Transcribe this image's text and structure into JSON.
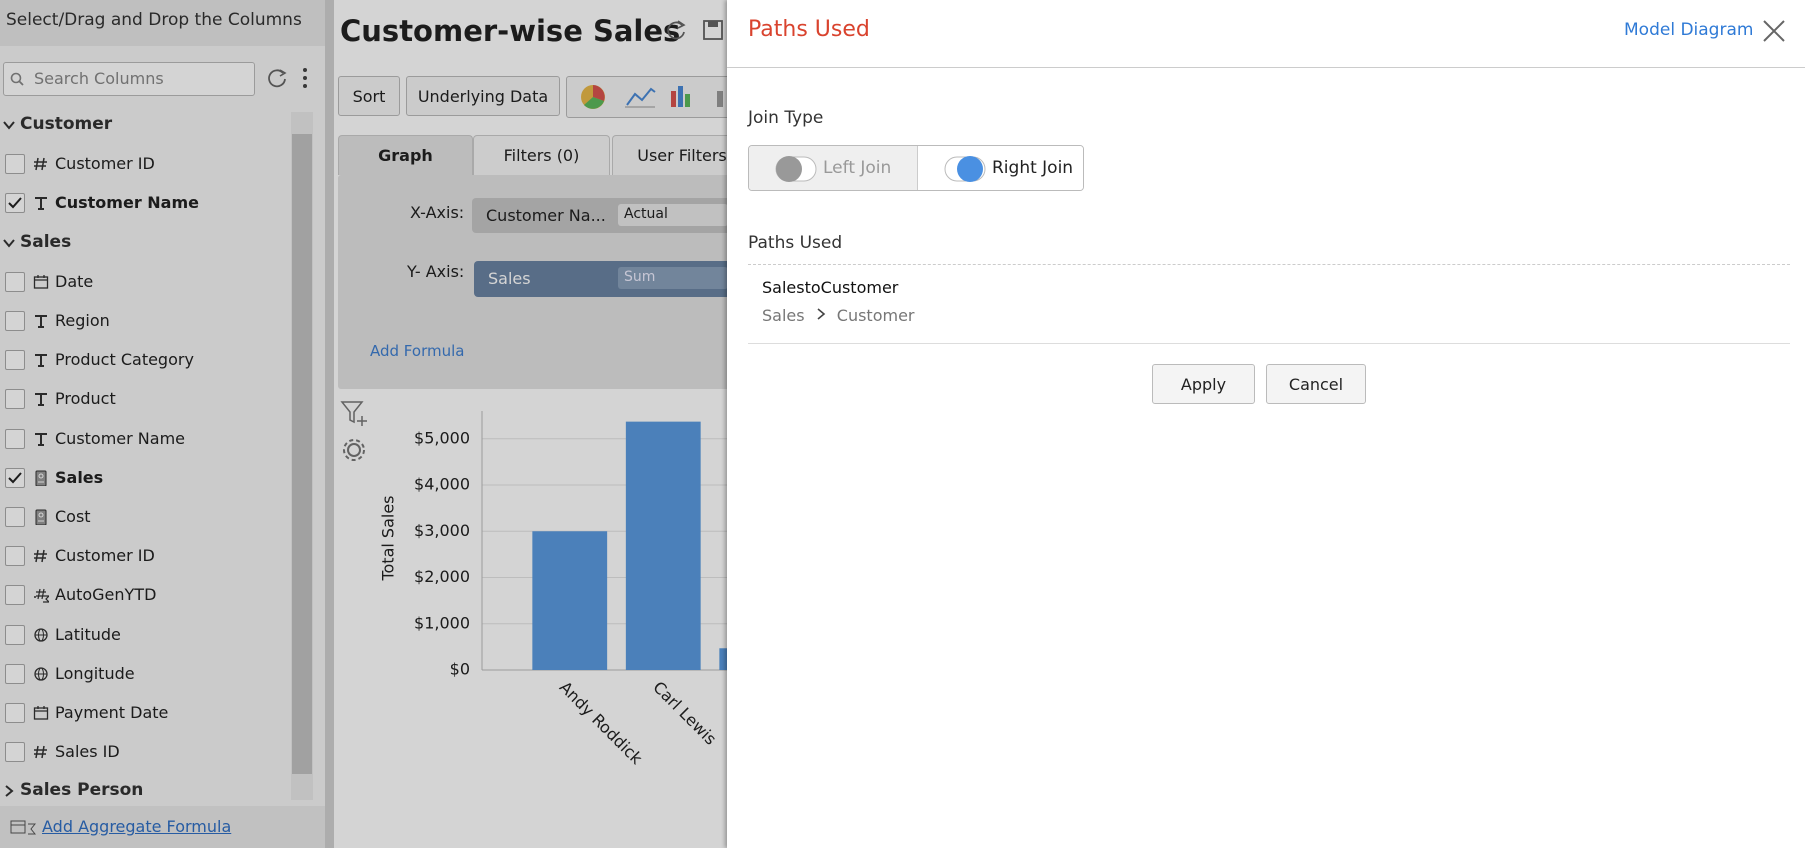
{
  "sidebar": {
    "title": "Select/Drag and Drop the Columns",
    "search_placeholder": "Search Columns",
    "groups": [
      {
        "name": "Customer",
        "expanded": true,
        "columns": [
          {
            "name": "Customer ID",
            "kind": "number",
            "checked": false
          },
          {
            "name": "Customer Name",
            "kind": "text",
            "checked": true
          }
        ]
      },
      {
        "name": "Sales",
        "expanded": true,
        "columns": [
          {
            "name": "Date",
            "kind": "date",
            "checked": false
          },
          {
            "name": "Region",
            "kind": "text",
            "checked": false
          },
          {
            "name": "Product Category",
            "kind": "text",
            "checked": false
          },
          {
            "name": "Product",
            "kind": "text",
            "checked": false
          },
          {
            "name": "Customer Name",
            "kind": "text",
            "checked": false
          },
          {
            "name": "Sales",
            "kind": "measure",
            "checked": true
          },
          {
            "name": "Cost",
            "kind": "measure",
            "checked": false
          },
          {
            "name": "Customer ID",
            "kind": "number",
            "checked": false
          },
          {
            "name": "AutoGenYTD",
            "kind": "formula",
            "checked": false
          },
          {
            "name": "Latitude",
            "kind": "geo",
            "checked": false
          },
          {
            "name": "Longitude",
            "kind": "geo",
            "checked": false
          },
          {
            "name": "Payment Date",
            "kind": "date",
            "checked": false
          },
          {
            "name": "Sales ID",
            "kind": "number",
            "checked": false
          }
        ]
      },
      {
        "name": "Sales Person",
        "expanded": false,
        "columns": []
      }
    ],
    "footer_link": "Add Aggregate Formula"
  },
  "report": {
    "title": "Customer-wise Sales",
    "toolbar": [
      "Sort",
      "Underlying Data"
    ],
    "tabs": [
      "Graph",
      "Filters (0)",
      "User Filters"
    ],
    "active_tab": 0,
    "x_axis_label": "X-Axis:",
    "x_axis_field": "Customer Na...",
    "x_axis_option": "Actual",
    "y_axis_label": "Y- Axis:",
    "y_axis_field": "Sales",
    "y_axis_option": "Sum",
    "add_formula": "Add Formula"
  },
  "chart_data": {
    "type": "bar",
    "y_axis_label": "Total Sales",
    "categories": [
      "Andy Roddick",
      "Carl Lewis",
      null
    ],
    "values": [
      3000,
      5370,
      470
    ],
    "color": "#5b9be0",
    "ylim": [
      0,
      5600
    ],
    "yticks": [
      {
        "value": 0,
        "label": "$0"
      },
      {
        "value": 1000,
        "label": "$1,000"
      },
      {
        "value": 2000,
        "label": "$2,000"
      },
      {
        "value": 3000,
        "label": "$3,000"
      },
      {
        "value": 4000,
        "label": "$4,000"
      },
      {
        "value": 5000,
        "label": "$5,000"
      }
    ],
    "grid": true
  },
  "dialog": {
    "title": "Paths Used",
    "model_link": "Model Diagram",
    "join_type_label": "Join Type",
    "join_options": [
      "Left Join",
      "Right Join"
    ],
    "selected_join": 1,
    "paths_label": "Paths Used",
    "path_name": "SalestoCustomer",
    "route": [
      "Sales",
      "Customer"
    ],
    "buttons": [
      "Apply",
      "Cancel"
    ]
  }
}
